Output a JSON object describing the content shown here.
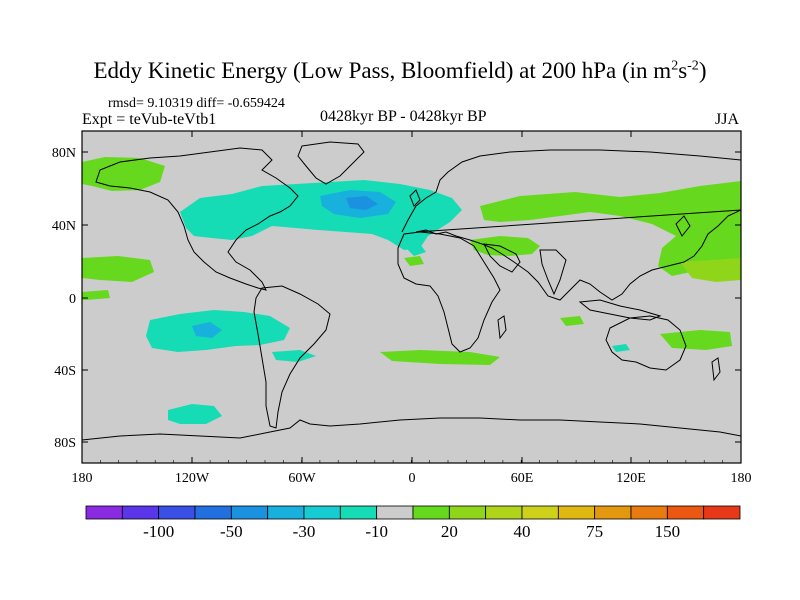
{
  "title": {
    "main": "Eddy Kinetic Energy (Low Pass, Bloomfield) at 200 hPa (in m",
    "sup1": "2",
    "mid": "s",
    "sup2": "-2",
    "end": ")"
  },
  "stats": "rmsd= 9.10319 diff= -0.659424",
  "expt": "Expt = teVub-teVtb1",
  "period": "0428kyr BP - 0428kyr BP",
  "season": "JJA",
  "map": {
    "lat_ticks": [
      "80N",
      "40N",
      "0",
      "40S",
      "80S"
    ],
    "lon_ticks": [
      "180",
      "120W",
      "60W",
      "0",
      "60E",
      "120E",
      "180"
    ],
    "background_color": "#cccccc"
  },
  "colorbar": {
    "colors": [
      "#8a2be2",
      "#5a35ea",
      "#3a4fe6",
      "#2270e0",
      "#1a92e0",
      "#18b0dc",
      "#17cbd2",
      "#15dcb4",
      "#cccccc",
      "#66d91e",
      "#8fd51a",
      "#b0d41a",
      "#cdd11a",
      "#dfb812",
      "#e39810",
      "#e97a10",
      "#ec5812",
      "#e8381a"
    ],
    "labels": [
      "-100",
      "-50",
      "-30",
      "-10",
      "20",
      "40",
      "75",
      "150"
    ]
  }
}
